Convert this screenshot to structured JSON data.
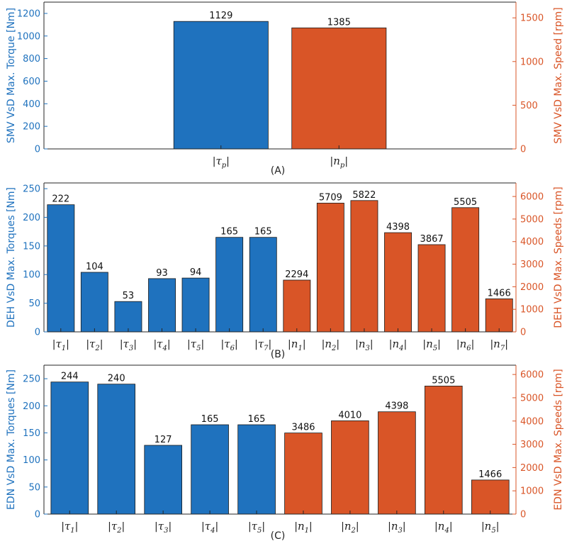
{
  "colors": {
    "left": "#1f72be",
    "right": "#d95527",
    "axis": "#262626"
  },
  "chart_data": [
    {
      "type": "bar",
      "caption": "(A)",
      "left_axis": {
        "label": "SMV VsD Max. Torque [Nm]",
        "range": [
          0,
          1300
        ],
        "ticks": [
          0,
          200,
          400,
          600,
          800,
          1000,
          1200
        ],
        "tick_labels": [
          "0",
          "200",
          "400",
          "600",
          "800",
          "1000",
          "1200"
        ]
      },
      "right_axis": {
        "label": "SMV VsD Max. Speed [rpm]",
        "range": [
          0,
          1680
        ],
        "ticks": [
          0,
          500,
          1000,
          1500
        ],
        "tick_labels": [
          "0",
          "500",
          "1000",
          "1500"
        ]
      },
      "x_range": [
        0,
        4
      ],
      "bars": [
        {
          "pos": 1.5,
          "sym": "τ",
          "sub": "p",
          "value": 1129,
          "label": "1129",
          "axis": "left"
        },
        {
          "pos": 2.5,
          "sym": "n",
          "sub": "p",
          "value": 1385,
          "label": "1385",
          "axis": "right"
        }
      ]
    },
    {
      "type": "bar",
      "caption": "(B)",
      "left_axis": {
        "label": "DEH VsD Max. Torques [Nm]",
        "range": [
          0,
          260
        ],
        "ticks": [
          0,
          50,
          100,
          150,
          200,
          250
        ],
        "tick_labels": [
          "0",
          "50",
          "100",
          "150",
          "200",
          "250"
        ]
      },
      "right_axis": {
        "label": "DEH VsD Max. Speeds [rpm]",
        "range": [
          0,
          6600
        ],
        "ticks": [
          0,
          1000,
          2000,
          3000,
          4000,
          5000,
          6000
        ],
        "tick_labels": [
          "0",
          "1000",
          "2000",
          "3000",
          "4000",
          "5000",
          "6000"
        ]
      },
      "x_range": [
        0.5,
        14.5
      ],
      "bars": [
        {
          "pos": 1,
          "sym": "τ",
          "sub": "1",
          "value": 222,
          "label": "222",
          "axis": "left"
        },
        {
          "pos": 2,
          "sym": "τ",
          "sub": "2",
          "value": 104,
          "label": "104",
          "axis": "left"
        },
        {
          "pos": 3,
          "sym": "τ",
          "sub": "3",
          "value": 53,
          "label": "53",
          "axis": "left"
        },
        {
          "pos": 4,
          "sym": "τ",
          "sub": "4",
          "value": 93,
          "label": "93",
          "axis": "left"
        },
        {
          "pos": 5,
          "sym": "τ",
          "sub": "5",
          "value": 94,
          "label": "94",
          "axis": "left"
        },
        {
          "pos": 6,
          "sym": "τ",
          "sub": "6",
          "value": 165,
          "label": "165",
          "axis": "left"
        },
        {
          "pos": 7,
          "sym": "τ",
          "sub": "7",
          "value": 165,
          "label": "165",
          "axis": "left"
        },
        {
          "pos": 8,
          "sym": "n",
          "sub": "1",
          "value": 2294,
          "label": "2294",
          "axis": "right"
        },
        {
          "pos": 9,
          "sym": "n",
          "sub": "2",
          "value": 5709,
          "label": "5709",
          "axis": "right"
        },
        {
          "pos": 10,
          "sym": "n",
          "sub": "3",
          "value": 5822,
          "label": "5822",
          "axis": "right"
        },
        {
          "pos": 11,
          "sym": "n",
          "sub": "4",
          "value": 4398,
          "label": "4398",
          "axis": "right"
        },
        {
          "pos": 12,
          "sym": "n",
          "sub": "5",
          "value": 3867,
          "label": "3867",
          "axis": "right"
        },
        {
          "pos": 13,
          "sym": "n",
          "sub": "6",
          "value": 5505,
          "label": "5505",
          "axis": "right"
        },
        {
          "pos": 14,
          "sym": "n",
          "sub": "7",
          "value": 1466,
          "label": "1466",
          "axis": "right"
        }
      ]
    },
    {
      "type": "bar",
      "caption": "(C)",
      "left_axis": {
        "label": "EDN VsD Max. Torques [Nm]",
        "range": [
          0,
          275
        ],
        "ticks": [
          0,
          50,
          100,
          150,
          200,
          250
        ],
        "tick_labels": [
          "0",
          "50",
          "100",
          "150",
          "200",
          "250"
        ]
      },
      "right_axis": {
        "label": "EDN VsD Max. Speeds [rpm]",
        "range": [
          0,
          6400
        ],
        "ticks": [
          0,
          1000,
          2000,
          3000,
          4000,
          5000,
          6000
        ],
        "tick_labels": [
          "0",
          "1000",
          "2000",
          "3000",
          "4000",
          "5000",
          "6000"
        ]
      },
      "x_range": [
        0.45,
        10.55
      ],
      "bars": [
        {
          "pos": 1,
          "sym": "τ",
          "sub": "1",
          "value": 244,
          "label": "244",
          "axis": "left"
        },
        {
          "pos": 2,
          "sym": "τ",
          "sub": "2",
          "value": 240,
          "label": "240",
          "axis": "left"
        },
        {
          "pos": 3,
          "sym": "τ",
          "sub": "3",
          "value": 127,
          "label": "127",
          "axis": "left"
        },
        {
          "pos": 4,
          "sym": "τ",
          "sub": "4",
          "value": 165,
          "label": "165",
          "axis": "left"
        },
        {
          "pos": 5,
          "sym": "τ",
          "sub": "5",
          "value": 165,
          "label": "165",
          "axis": "left"
        },
        {
          "pos": 6,
          "sym": "n",
          "sub": "1",
          "value": 3486,
          "label": "3486",
          "axis": "right"
        },
        {
          "pos": 7,
          "sym": "n",
          "sub": "2",
          "value": 4010,
          "label": "4010",
          "axis": "right"
        },
        {
          "pos": 8,
          "sym": "n",
          "sub": "3",
          "value": 4398,
          "label": "4398",
          "axis": "right"
        },
        {
          "pos": 9,
          "sym": "n",
          "sub": "4",
          "value": 5505,
          "label": "5505",
          "axis": "right"
        },
        {
          "pos": 10,
          "sym": "n",
          "sub": "5",
          "value": 1466,
          "label": "1466",
          "axis": "right"
        }
      ]
    }
  ]
}
